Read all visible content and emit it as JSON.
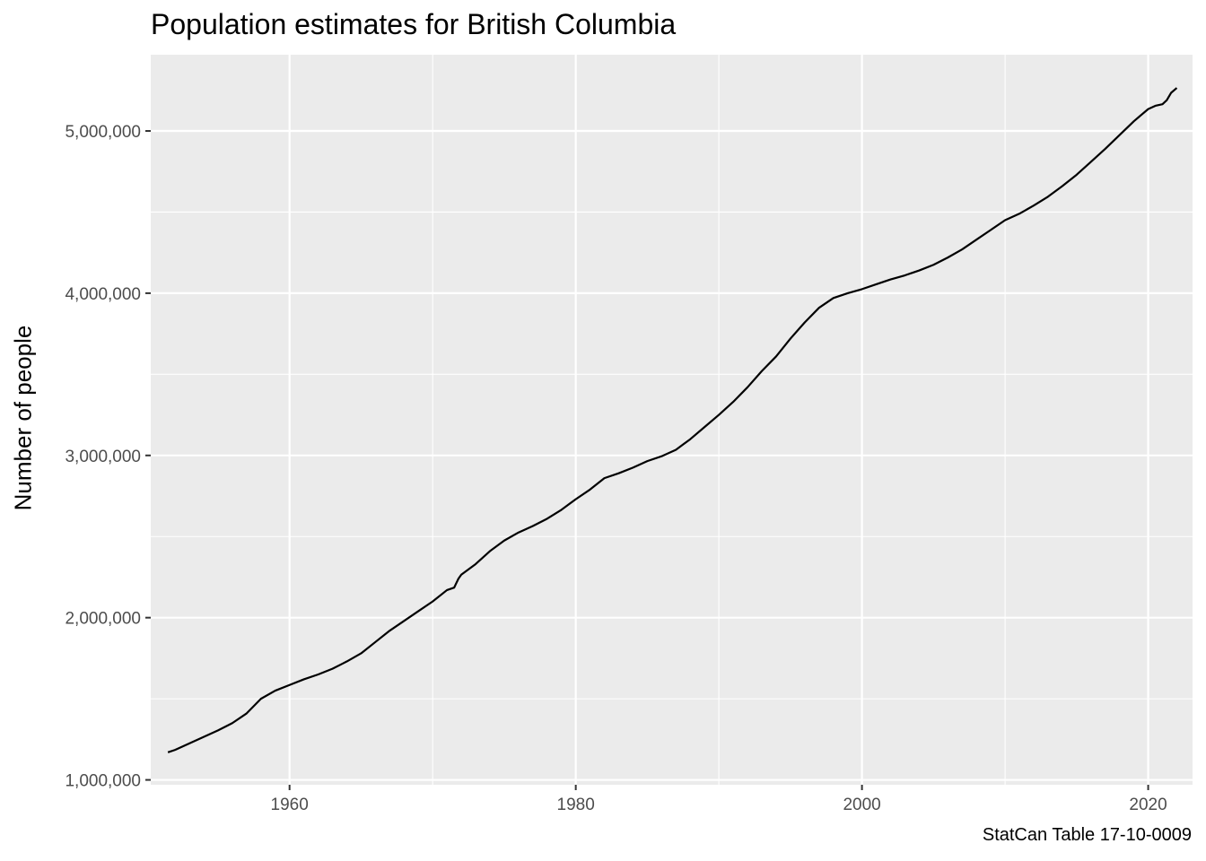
{
  "chart_data": {
    "type": "line",
    "title": "Population estimates for British Columbia",
    "xlabel": "",
    "ylabel": "Number of people",
    "caption": "StatCan Table 17-10-0009",
    "xlim": [
      1950.3,
      2023.1
    ],
    "ylim": [
      970000,
      5470000
    ],
    "x_ticks": [
      1960,
      1980,
      2000,
      2020
    ],
    "x_tick_labels": [
      "1960",
      "1980",
      "2000",
      "2020"
    ],
    "y_ticks": [
      1000000,
      2000000,
      3000000,
      4000000,
      5000000
    ],
    "y_tick_labels": [
      "1,000,000",
      "2,000,000",
      "3,000,000",
      "4,000,000",
      "5,000,000"
    ],
    "grid": true,
    "legend": "none",
    "colors": {
      "panel": "#ebebeb",
      "grid": "#ffffff",
      "line": "#000000",
      "tick_text": "#4d4d4d"
    },
    "series": [
      {
        "values": [
          [
            1951.5,
            1170000
          ],
          [
            1952.0,
            1185000
          ],
          [
            1953.0,
            1225000
          ],
          [
            1954.0,
            1265000
          ],
          [
            1955.0,
            1305000
          ],
          [
            1956.0,
            1350000
          ],
          [
            1957.0,
            1410000
          ],
          [
            1958.0,
            1500000
          ],
          [
            1959.0,
            1550000
          ],
          [
            1960.0,
            1585000
          ],
          [
            1961.0,
            1620000
          ],
          [
            1962.0,
            1650000
          ],
          [
            1963.0,
            1685000
          ],
          [
            1964.0,
            1730000
          ],
          [
            1965.0,
            1780000
          ],
          [
            1966.0,
            1850000
          ],
          [
            1967.0,
            1920000
          ],
          [
            1968.0,
            1980000
          ],
          [
            1969.0,
            2040000
          ],
          [
            1970.0,
            2100000
          ],
          [
            1971.0,
            2170000
          ],
          [
            1971.5,
            2185000
          ],
          [
            1971.8,
            2240000
          ],
          [
            1972.0,
            2265000
          ],
          [
            1973.0,
            2330000
          ],
          [
            1974.0,
            2410000
          ],
          [
            1975.0,
            2475000
          ],
          [
            1976.0,
            2525000
          ],
          [
            1977.0,
            2565000
          ],
          [
            1978.0,
            2610000
          ],
          [
            1979.0,
            2665000
          ],
          [
            1980.0,
            2730000
          ],
          [
            1981.0,
            2790000
          ],
          [
            1982.0,
            2860000
          ],
          [
            1983.0,
            2890000
          ],
          [
            1984.0,
            2925000
          ],
          [
            1985.0,
            2965000
          ],
          [
            1986.0,
            2995000
          ],
          [
            1987.0,
            3035000
          ],
          [
            1988.0,
            3100000
          ],
          [
            1989.0,
            3175000
          ],
          [
            1990.0,
            3250000
          ],
          [
            1991.0,
            3330000
          ],
          [
            1992.0,
            3420000
          ],
          [
            1993.0,
            3520000
          ],
          [
            1994.0,
            3610000
          ],
          [
            1995.0,
            3720000
          ],
          [
            1996.0,
            3820000
          ],
          [
            1997.0,
            3910000
          ],
          [
            1998.0,
            3970000
          ],
          [
            1999.0,
            4000000
          ],
          [
            2000.0,
            4025000
          ],
          [
            2001.0,
            4055000
          ],
          [
            2002.0,
            4085000
          ],
          [
            2003.0,
            4110000
          ],
          [
            2004.0,
            4140000
          ],
          [
            2005.0,
            4175000
          ],
          [
            2006.0,
            4220000
          ],
          [
            2007.0,
            4270000
          ],
          [
            2008.0,
            4330000
          ],
          [
            2009.0,
            4390000
          ],
          [
            2010.0,
            4450000
          ],
          [
            2011.0,
            4490000
          ],
          [
            2012.0,
            4540000
          ],
          [
            2013.0,
            4595000
          ],
          [
            2014.0,
            4660000
          ],
          [
            2015.0,
            4730000
          ],
          [
            2016.0,
            4810000
          ],
          [
            2017.0,
            4890000
          ],
          [
            2018.0,
            4975000
          ],
          [
            2019.0,
            5060000
          ],
          [
            2020.0,
            5135000
          ],
          [
            2020.5,
            5155000
          ],
          [
            2021.0,
            5165000
          ],
          [
            2021.3,
            5190000
          ],
          [
            2021.6,
            5235000
          ],
          [
            2022.0,
            5265000
          ]
        ]
      }
    ]
  }
}
